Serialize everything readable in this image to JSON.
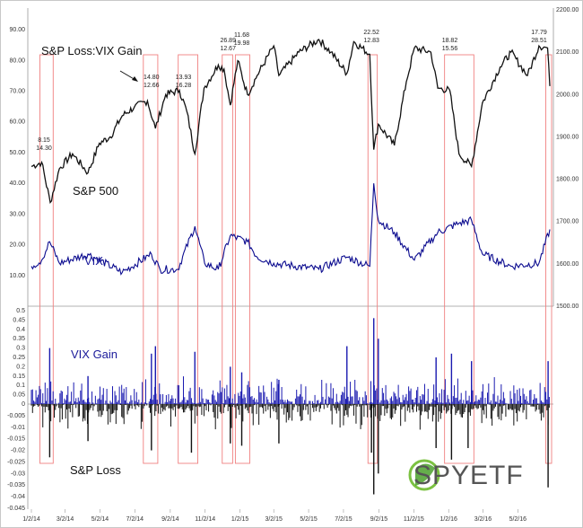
{
  "chart_data": {
    "type": "line",
    "title": "S&P Loss:VIX Gain",
    "labels": {
      "sp500": "S&P 500",
      "vix": "VIX",
      "vix_gain": "VIX Gain",
      "sp_loss": "S&P Loss"
    },
    "left_axis_ticks": [
      "90.00",
      "80.00",
      "70.00",
      "60.00",
      "50.00",
      "40.00",
      "30.00",
      "20.00",
      "10.00"
    ],
    "left_axis_range": [
      0,
      95
    ],
    "right_axis_ticks": [
      "2200.00",
      "2100.00",
      "2000.00",
      "1900.00",
      "1800.00",
      "1700.00",
      "1600.00",
      "1500.00"
    ],
    "right_axis_range": [
      1500,
      2200
    ],
    "lower_axis_ticks": [
      "0.5",
      "0.45",
      "0.4",
      "0.35",
      "0.3",
      "0.25",
      "0.2",
      "0.15",
      "0.1",
      "0.05",
      "0",
      "-0.005",
      "-0.01",
      "-0.015",
      "-0.02",
      "-0.025",
      "-0.03",
      "-0.035",
      "-0.04",
      "-0.045"
    ],
    "x_ticks": [
      "1/2/14",
      "3/2/14",
      "5/2/14",
      "7/2/14",
      "9/2/14",
      "11/2/14",
      "1/2/15",
      "3/2/15",
      "5/2/15",
      "7/2/15",
      "9/2/15",
      "11/2/15",
      "1/2/16",
      "3/2/16",
      "5/2/16"
    ],
    "x_range": [
      "2014-01-02",
      "2016-06-27"
    ],
    "sp500_series": {
      "name": "S&P 500",
      "dates": [
        "2014-01-02",
        "2014-01-20",
        "2014-02-04",
        "2014-02-20",
        "2014-03-15",
        "2014-04-11",
        "2014-05-01",
        "2014-05-20",
        "2014-06-10",
        "2014-07-01",
        "2014-07-24",
        "2014-08-07",
        "2014-08-25",
        "2014-09-18",
        "2014-10-01",
        "2014-10-15",
        "2014-10-31",
        "2014-11-25",
        "2014-12-05",
        "2014-12-16",
        "2014-12-29",
        "2015-01-15",
        "2015-02-01",
        "2015-03-02",
        "2015-03-11",
        "2015-04-15",
        "2015-05-20",
        "2015-06-10",
        "2015-07-08",
        "2015-07-20",
        "2015-08-17",
        "2015-08-24",
        "2015-09-01",
        "2015-09-29",
        "2015-10-20",
        "2015-11-03",
        "2015-12-02",
        "2015-12-14",
        "2016-01-04",
        "2016-01-20",
        "2016-02-11",
        "2016-03-01",
        "2016-04-01",
        "2016-04-20",
        "2016-05-19",
        "2016-06-08",
        "2016-06-23",
        "2016-06-27"
      ],
      "values": [
        1830,
        1840,
        1745,
        1825,
        1860,
        1815,
        1885,
        1900,
        1950,
        1970,
        1985,
        1920,
        2000,
        2010,
        1960,
        1860,
        2015,
        2070,
        2060,
        1975,
        2080,
        2000,
        2045,
        2115,
        2045,
        2100,
        2130,
        2100,
        2050,
        2125,
        2095,
        1870,
        1930,
        1880,
        2030,
        2110,
        2100,
        2015,
        2010,
        1860,
        1830,
        1980,
        2065,
        2100,
        2045,
        2115,
        2110,
        2020
      ]
    },
    "vix_series": {
      "name": "VIX",
      "dates": [
        "2014-01-02",
        "2014-01-20",
        "2014-02-03",
        "2014-02-20",
        "2014-04-11",
        "2014-06-10",
        "2014-07-31",
        "2014-08-15",
        "2014-09-15",
        "2014-10-15",
        "2014-11-01",
        "2014-11-25",
        "2014-12-16",
        "2015-01-15",
        "2015-02-01",
        "2015-03-02",
        "2015-05-20",
        "2015-07-08",
        "2015-08-17",
        "2015-08-24",
        "2015-09-01",
        "2015-09-29",
        "2015-11-03",
        "2015-12-14",
        "2016-01-20",
        "2016-02-11",
        "2016-03-01",
        "2016-04-20",
        "2016-06-08",
        "2016-06-27"
      ],
      "values": [
        13,
        15,
        21,
        14,
        17,
        11,
        17,
        12,
        12,
        26,
        14,
        12,
        23,
        21,
        16,
        14,
        12,
        16,
        13,
        40,
        28,
        24,
        15,
        24,
        27,
        28,
        17,
        13,
        14,
        25
      ]
    },
    "vix_gain_sample": {
      "dates": [
        "2014-02-03",
        "2014-04-11",
        "2014-07-31",
        "2014-08-07",
        "2014-10-15",
        "2014-12-16",
        "2015-01-05",
        "2015-03-11",
        "2015-07-08",
        "2015-08-24",
        "2015-09-01",
        "2015-12-11",
        "2016-01-07",
        "2016-02-11",
        "2016-06-24"
      ],
      "values": [
        0.3,
        0.15,
        0.27,
        0.31,
        0.28,
        0.2,
        0.17,
        0.13,
        0.31,
        0.46,
        0.35,
        0.25,
        0.27,
        0.23,
        0.23
      ]
    },
    "sp_loss_sample": {
      "dates": [
        "2014-02-03",
        "2014-04-11",
        "2014-07-31",
        "2014-10-09",
        "2014-12-16",
        "2015-01-05",
        "2015-03-11",
        "2015-08-20",
        "2015-08-24",
        "2015-09-01",
        "2015-12-11",
        "2016-01-07",
        "2016-02-05",
        "2016-06-24"
      ],
      "values": [
        -0.023,
        -0.016,
        -0.02,
        -0.021,
        -0.017,
        -0.018,
        -0.017,
        -0.021,
        -0.039,
        -0.03,
        -0.019,
        -0.024,
        -0.019,
        -0.036
      ]
    },
    "annotations": [
      {
        "top": "8.15",
        "bottom": "14.30",
        "date": "2014-01-24"
      },
      {
        "top": "14.80",
        "bottom": "12.66",
        "date": "2014-07-31"
      },
      {
        "top": "13.93",
        "bottom": "16.28",
        "date": "2014-09-25"
      },
      {
        "top": "26.89",
        "bottom": "12.67",
        "date": "2014-12-12"
      },
      {
        "top": "11.68",
        "bottom": "19.98",
        "date": "2015-01-05"
      },
      {
        "top": "22.52",
        "bottom": "12.83",
        "date": "2015-08-20"
      },
      {
        "top": "18.82",
        "bottom": "15.56",
        "date": "2016-01-04"
      },
      {
        "top": "17.79",
        "bottom": "28.51",
        "date": "2016-06-24"
      }
    ],
    "highlight_periods": [
      [
        "2014-01-20",
        "2014-02-06"
      ],
      [
        "2014-07-20",
        "2014-08-08"
      ],
      [
        "2014-09-19",
        "2014-10-17"
      ],
      [
        "2014-12-05",
        "2014-12-17"
      ],
      [
        "2014-12-28",
        "2015-01-16"
      ],
      [
        "2015-08-17",
        "2015-08-27"
      ],
      [
        "2015-12-29",
        "2016-02-12"
      ],
      [
        "2016-06-23",
        "2016-06-27"
      ]
    ],
    "colors": {
      "sp500": "#111111",
      "vix": "#0b0b8f",
      "gain_bar": "#1a1ab0",
      "loss_bar": "#111111",
      "highlight": "#f08080"
    }
  },
  "logo": {
    "text": "SPYETF"
  }
}
